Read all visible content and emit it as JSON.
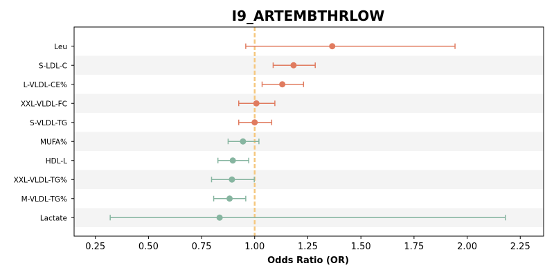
{
  "chart_data": {
    "type": "forest",
    "title": "I9_ARTEMBTHRLOW",
    "xlabel": "Odds Ratio (OR)",
    "ylabel": "",
    "xlim": [
      0.15,
      2.36
    ],
    "xticks": [
      0.25,
      0.5,
      0.75,
      1.0,
      1.25,
      1.5,
      1.75,
      2.0,
      2.25
    ],
    "xtick_labels": [
      "0.25",
      "0.50",
      "0.75",
      "1.00",
      "1.25",
      "1.50",
      "1.75",
      "2.00",
      "2.25"
    ],
    "reference_line": 1.0,
    "grid": false,
    "colors": {
      "increased_risk": "#e07b5f",
      "decreased_risk": "#86b5a0",
      "reference_line": "#f5c77e",
      "row_band": "#f4f4f4"
    },
    "rows": [
      {
        "label": "Leu",
        "or": 1.365,
        "lower": 0.958,
        "upper": 1.943,
        "group": "increased_risk"
      },
      {
        "label": "S-LDL-C",
        "or": 1.183,
        "lower": 1.087,
        "upper": 1.285,
        "group": "increased_risk"
      },
      {
        "label": "L-VLDL-CE%",
        "or": 1.13,
        "lower": 1.035,
        "upper": 1.23,
        "group": "increased_risk"
      },
      {
        "label": "XXL-VLDL-FC",
        "or": 1.008,
        "lower": 0.925,
        "upper": 1.095,
        "group": "increased_risk"
      },
      {
        "label": "S-VLDL-TG",
        "or": 1.0,
        "lower": 0.925,
        "upper": 1.08,
        "group": "increased_risk"
      },
      {
        "label": "MUFA%",
        "or": 0.945,
        "lower": 0.875,
        "upper": 1.02,
        "group": "decreased_risk"
      },
      {
        "label": "HDL-L",
        "or": 0.897,
        "lower": 0.827,
        "upper": 0.972,
        "group": "decreased_risk"
      },
      {
        "label": "XXL-VLDL-TG%",
        "or": 0.893,
        "lower": 0.797,
        "upper": 0.998,
        "group": "decreased_risk"
      },
      {
        "label": "M-VLDL-TG%",
        "or": 0.882,
        "lower": 0.807,
        "upper": 0.958,
        "group": "decreased_risk"
      },
      {
        "label": "Lactate",
        "or": 0.835,
        "lower": 0.32,
        "upper": 2.18,
        "group": "decreased_risk"
      }
    ]
  }
}
